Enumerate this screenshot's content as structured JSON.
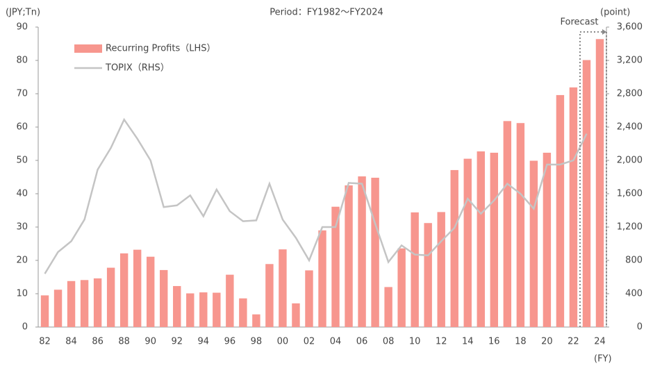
{
  "chart_data": {
    "type": "bar+line",
    "title": "Period：FY1982～FY2024",
    "y_label": "(JPY;Tn)",
    "y2_label": "(point)",
    "x_label": "(FY)",
    "annotations": [
      {
        "text": "Forecast"
      }
    ],
    "categories": [
      "82",
      null,
      "84",
      null,
      "86",
      null,
      "88",
      null,
      "90",
      null,
      "92",
      null,
      "94",
      null,
      "96",
      null,
      "98",
      null,
      "00",
      null,
      "02",
      null,
      "04",
      null,
      "06",
      null,
      "08",
      null,
      "10",
      null,
      "12",
      null,
      "14",
      null,
      "16",
      null,
      "18",
      null,
      "20",
      null,
      "22",
      null,
      "24"
    ],
    "series": [
      {
        "name": "Recurring Profits（LHS）",
        "type": "bar",
        "color": "#f7968e",
        "values": [
          9.5,
          11.2,
          13.8,
          14.1,
          14.6,
          17.8,
          22.1,
          23.2,
          21.1,
          17.1,
          12.3,
          10.1,
          10.4,
          10.3,
          15.7,
          8.6,
          3.8,
          18.9,
          23.3,
          7.1,
          17.0,
          29.0,
          36.1,
          42.5,
          45.2,
          44.8,
          12.0,
          23.6,
          34.4,
          31.2,
          34.5,
          47.1,
          50.5,
          52.7,
          52.3,
          61.8,
          61.2,
          49.9,
          52.3,
          69.6,
          71.9,
          80.1,
          86.4
        ]
      },
      {
        "name": "TOPIX（RHS）",
        "type": "line",
        "axis": "y2",
        "color": "#c4c4c4",
        "values": [
          640,
          900,
          1030,
          1290,
          1890,
          2150,
          2490,
          2260,
          2000,
          1440,
          1460,
          1580,
          1330,
          1650,
          1390,
          1270,
          1280,
          1720,
          1290,
          1070,
          800,
          1200,
          1200,
          1730,
          1720,
          1240,
          780,
          980,
          870,
          860,
          1030,
          1190,
          1540,
          1360,
          1520,
          1720,
          1600,
          1420,
          1950,
          1950,
          2000,
          2320,
          null
        ]
      }
    ],
    "ylim": [
      0,
      90
    ],
    "yticks": [
      0,
      10,
      20,
      30,
      40,
      50,
      60,
      70,
      80,
      90
    ],
    "y2lim": [
      0,
      3600
    ],
    "y2ticks": [
      0,
      400,
      800,
      {
        "value": 1200,
        "label": "1,200"
      },
      {
        "value": 1600,
        "label": "1,600"
      },
      {
        "value": 2000,
        "label": "2,000"
      },
      {
        "value": 2400,
        "label": "2,400"
      },
      {
        "value": 2800,
        "label": "2,800"
      },
      {
        "value": 3200,
        "label": "3,200"
      },
      {
        "value": 3600,
        "label": "3,600"
      }
    ],
    "grid": false,
    "legend": "upper left"
  }
}
